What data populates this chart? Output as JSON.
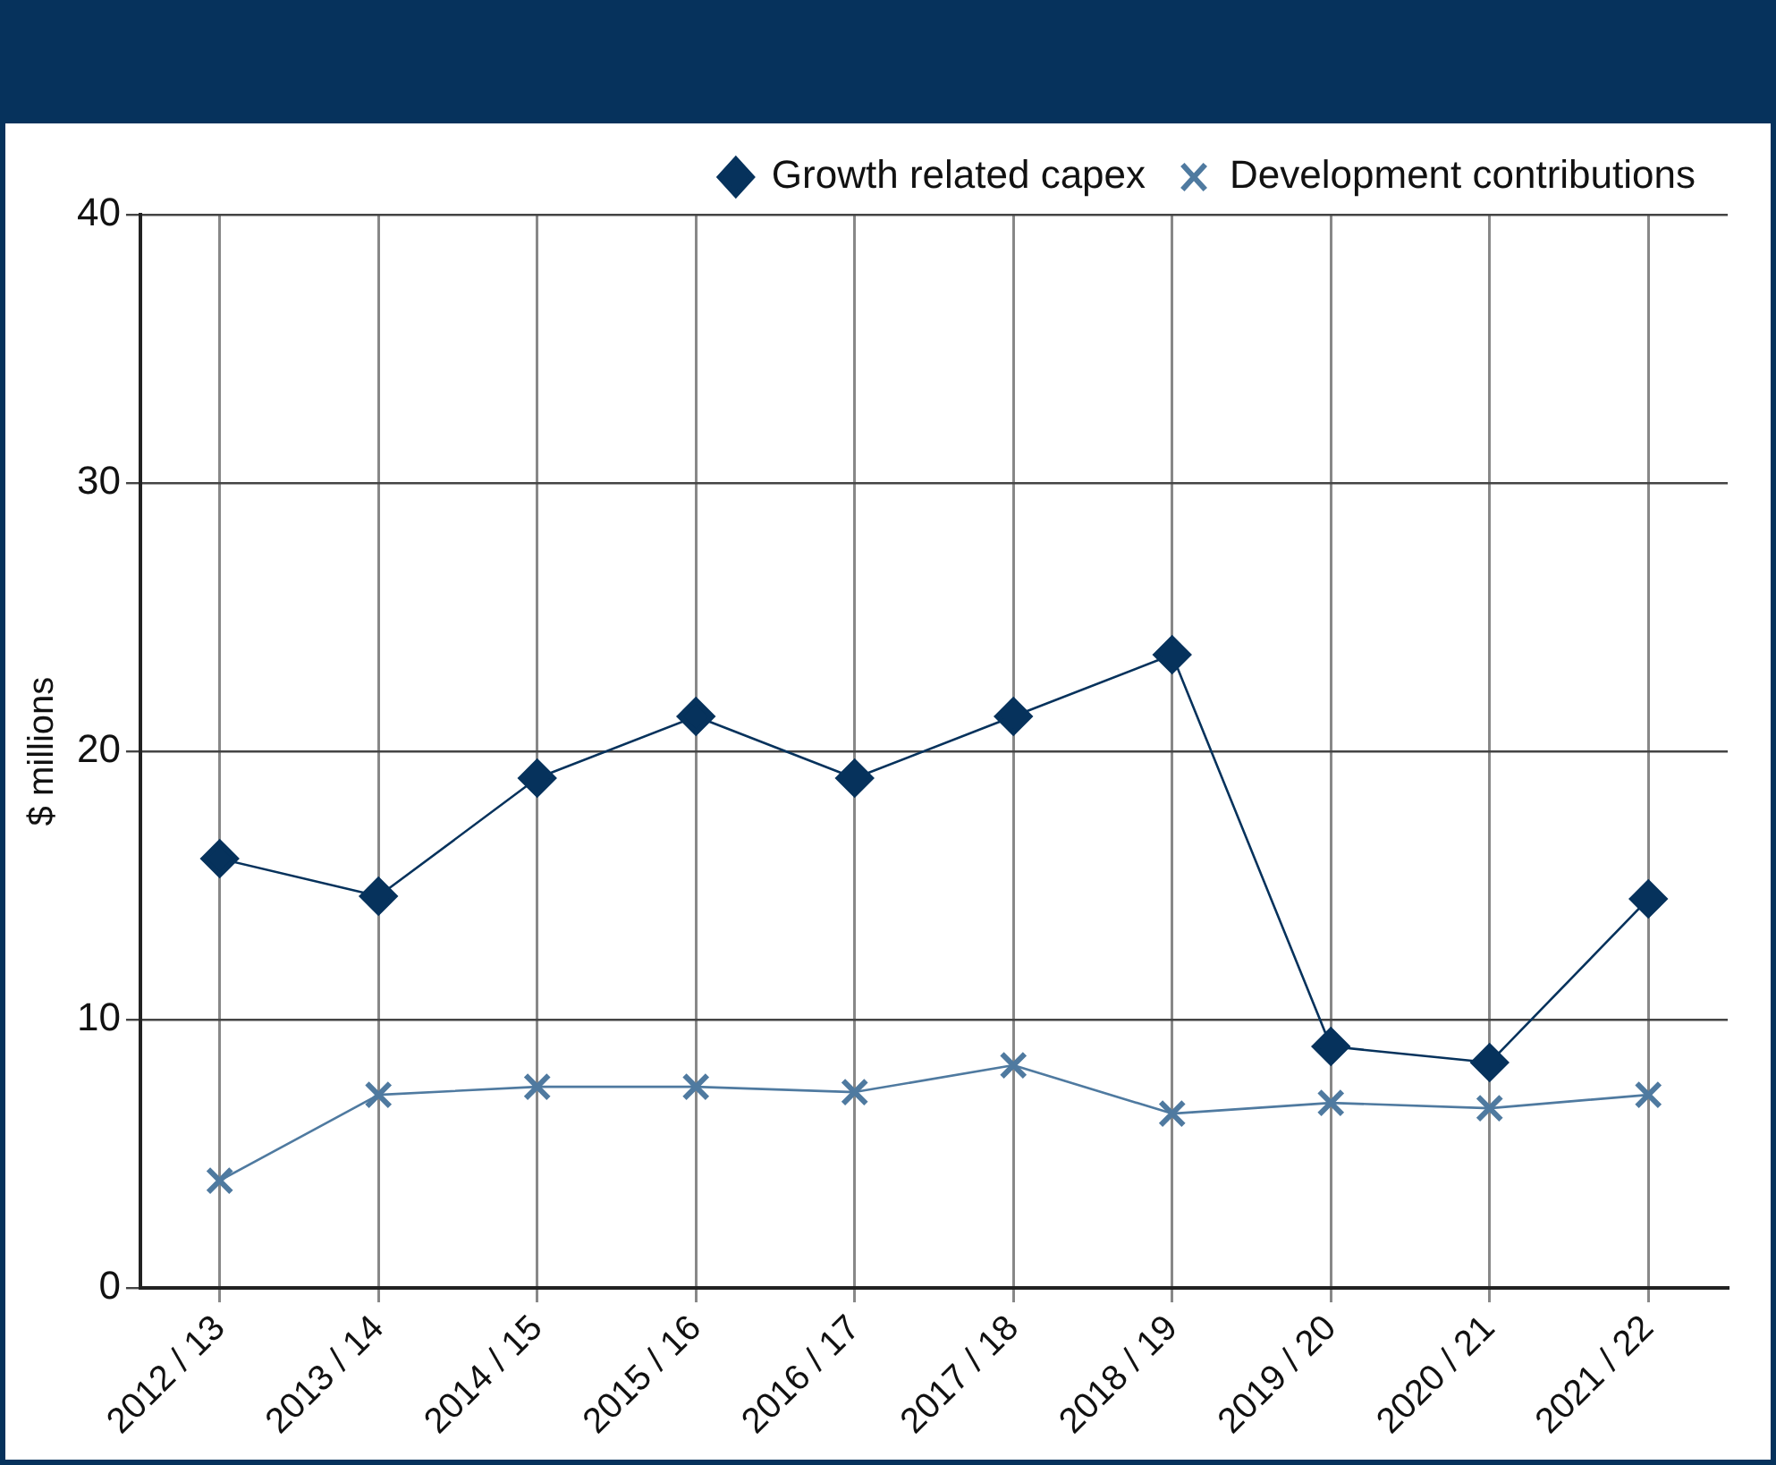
{
  "chart_data": {
    "type": "line",
    "ylabel": "$ millions",
    "categories": [
      "2012 / 13",
      "2013 / 14",
      "2014 / 15",
      "2015 / 16",
      "2016 / 17",
      "2017 / 18",
      "2018 / 19",
      "2019 / 20",
      "2020 / 21",
      "2021 / 22"
    ],
    "series": [
      {
        "name": "Growth related capex",
        "color": "#06325c",
        "marker": "diamond",
        "values": [
          16.0,
          14.6,
          19.0,
          21.3,
          19.0,
          21.3,
          23.6,
          9.0,
          8.4,
          14.5
        ]
      },
      {
        "name": "Development contributions",
        "color": "#4f7aa0",
        "marker": "cross",
        "values": [
          4.0,
          7.2,
          7.5,
          7.5,
          7.3,
          8.3,
          6.5,
          6.9,
          6.7,
          7.2
        ]
      }
    ],
    "ylim": [
      0,
      40
    ],
    "yticks": [
      0,
      10,
      20,
      30,
      40
    ],
    "grid": true,
    "legend": "top right",
    "line_style": "solid"
  }
}
